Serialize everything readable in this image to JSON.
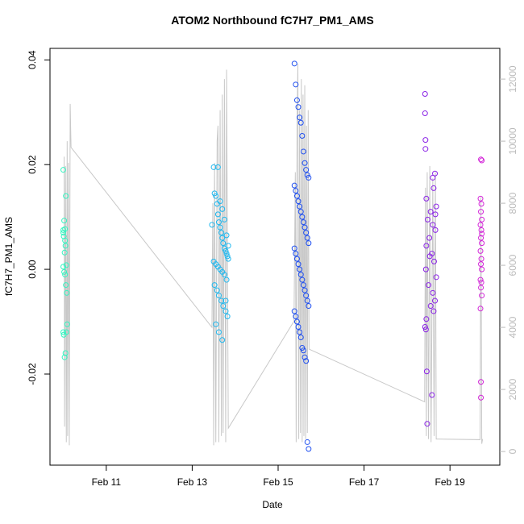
{
  "chart_data": {
    "type": "scatter",
    "title": "ATOM2 Northbound fC7H7_PM1_AMS",
    "xlabel": "Date",
    "ylabel": "fC7H7_PM1_AMS",
    "xlim": [
      9.69,
      20.16
    ],
    "xticks": [
      {
        "value": 11,
        "label": "Feb 11"
      },
      {
        "value": 13,
        "label": "Feb 13"
      },
      {
        "value": 15,
        "label": "Feb 15"
      },
      {
        "value": 17,
        "label": "Feb 17"
      },
      {
        "value": 19,
        "label": "Feb 19"
      }
    ],
    "ylim": [
      -0.0374,
      0.0422
    ],
    "yticks": [
      -0.02,
      {
        "value": 0,
        "label": "0.00"
      },
      0.02,
      0.04
    ],
    "y2lim": [
      -440,
      12990
    ],
    "y2ticks": [
      0,
      2000,
      4000,
      6000,
      8000,
      10000,
      12000
    ],
    "series": [
      {
        "color": "#c8c8c8",
        "axis": "y2",
        "x": [
          10.02,
          10.03,
          10.05,
          10.07,
          10.09,
          10.1,
          10.12,
          10.14,
          10.16,
          10.18,
          13.46,
          13.48,
          13.5,
          13.52,
          13.55,
          13.58,
          13.6,
          13.62,
          13.65,
          13.68,
          13.7,
          13.72,
          13.75,
          13.78,
          13.8,
          13.84,
          15.37,
          15.4,
          15.42,
          15.44,
          15.46,
          15.48,
          15.5,
          15.52,
          15.54,
          15.56,
          15.58,
          15.6,
          15.62,
          15.64,
          15.66,
          15.68,
          15.7,
          15.72,
          18.41,
          18.43,
          18.45,
          18.47,
          18.5,
          18.53,
          18.56,
          18.6,
          18.63,
          18.66,
          18.68,
          18.71,
          19.7,
          19.72,
          19.74,
          19.76
        ],
        "values": [
          9500,
          800,
          9200,
          300,
          10000,
          500,
          9300,
          200,
          11200,
          9800,
          4000,
          8000,
          200,
          9300,
          300,
          10000,
          10500,
          300,
          11000,
          500,
          11500,
          600,
          12000,
          300,
          12300,
          750,
          4200,
          9000,
          300,
          10500,
          12500,
          400,
          11000,
          600,
          12000,
          300,
          11500,
          500,
          11800,
          400,
          10500,
          600,
          11000,
          3300,
          1600,
          8500,
          500,
          9000,
          400,
          9200,
          300,
          8800,
          500,
          9000,
          400,
          400,
          380,
          8200,
          250,
          400
        ]
      },
      {
        "color": "#33f5c0",
        "x": [
          10.0,
          10.02,
          10.04,
          10.0,
          10.01,
          10.03,
          10.0,
          10.02,
          10.04,
          10.0,
          10.01,
          10.05,
          10.03,
          10.06,
          10.0,
          10.04,
          10.05,
          10.07,
          10.06,
          10.08,
          10.09,
          10.07
        ],
        "values": [
          0.019,
          0.0093,
          0.0077,
          0.007,
          0.0063,
          0.0032,
          0.0005,
          -0.0005,
          -0.001,
          -0.012,
          -0.0125,
          -0.016,
          -0.0168,
          0.014,
          0.0075,
          0.0055,
          0.0045,
          0.0008,
          -0.003,
          -0.0045,
          -0.0105,
          -0.012
        ]
      },
      {
        "color": "#1fb8ef",
        "x": [
          13.5,
          13.52,
          13.55,
          13.58,
          13.6,
          13.62,
          13.65,
          13.68,
          13.7,
          13.72,
          13.75,
          13.78,
          13.8,
          13.82,
          13.84,
          13.5,
          13.55,
          13.6,
          13.65,
          13.7,
          13.75,
          13.8,
          13.52,
          13.58,
          13.62,
          13.68,
          13.72,
          13.78,
          13.82,
          13.6,
          13.65,
          13.7,
          13.75,
          13.8,
          13.84,
          13.55,
          13.62,
          13.7,
          13.78,
          13.46
        ],
        "values": [
          0.0195,
          0.0145,
          0.014,
          0.0125,
          0.0105,
          0.009,
          0.008,
          0.007,
          0.006,
          0.005,
          0.004,
          0.0035,
          0.003,
          0.0025,
          0.002,
          0.0015,
          0.001,
          0.0005,
          0,
          -0.0005,
          -0.001,
          -0.002,
          -0.003,
          -0.004,
          -0.005,
          -0.006,
          -0.007,
          -0.008,
          -0.009,
          0.0195,
          0.013,
          0.0115,
          0.0095,
          0.0065,
          0.0045,
          -0.0105,
          -0.012,
          -0.0135,
          -0.006,
          0.0085
        ]
      },
      {
        "color": "#1f4ff0",
        "x": [
          15.38,
          15.41,
          15.44,
          15.47,
          15.5,
          15.53,
          15.56,
          15.59,
          15.62,
          15.65,
          15.68,
          15.71,
          15.38,
          15.41,
          15.44,
          15.47,
          15.5,
          15.53,
          15.56,
          15.59,
          15.62,
          15.65,
          15.68,
          15.71,
          15.38,
          15.41,
          15.44,
          15.47,
          15.5,
          15.53,
          15.56,
          15.59,
          15.62,
          15.65,
          15.68,
          15.71,
          15.38,
          15.41,
          15.44,
          15.47,
          15.5,
          15.53,
          15.56,
          15.59,
          15.62,
          15.65,
          15.68,
          15.71
        ],
        "values": [
          0.0393,
          0.0353,
          0.0323,
          0.031,
          0.029,
          0.028,
          0.0255,
          0.0225,
          0.0203,
          0.019,
          0.018,
          0.0175,
          0.016,
          0.015,
          0.014,
          0.013,
          0.012,
          0.011,
          0.01,
          0.009,
          0.008,
          0.007,
          0.006,
          0.005,
          0.004,
          0.003,
          0.002,
          0.001,
          0,
          -0.001,
          -0.002,
          -0.003,
          -0.004,
          -0.005,
          -0.006,
          -0.007,
          -0.008,
          -0.009,
          -0.01,
          -0.011,
          -0.012,
          -0.013,
          -0.015,
          -0.0155,
          -0.0168,
          -0.0175,
          -0.033,
          -0.0343
        ]
      },
      {
        "color": "#8a22e6",
        "x": [
          18.42,
          18.42,
          18.43,
          18.43,
          18.65,
          18.6,
          18.62,
          18.45,
          18.68,
          18.55,
          18.48,
          18.6,
          18.66,
          18.52,
          18.45,
          18.58,
          18.63,
          18.44,
          18.68,
          18.5,
          18.6,
          18.65,
          18.55,
          18.62,
          18.45,
          18.42,
          18.44,
          18.46,
          18.58,
          18.47,
          18.66,
          18.53
        ],
        "values": [
          0.0335,
          0.0298,
          0.0247,
          0.023,
          0.0183,
          0.0175,
          0.0155,
          0.0135,
          0.012,
          0.011,
          0.0095,
          0.0085,
          0.0075,
          0.006,
          0.0045,
          0.003,
          0.0015,
          0,
          -0.0015,
          -0.003,
          -0.0045,
          -0.006,
          -0.007,
          -0.008,
          -0.0095,
          -0.011,
          -0.0115,
          -0.0195,
          -0.024,
          -0.0295,
          0.0105,
          0.0025
        ]
      },
      {
        "color": "#d325d8",
        "x": [
          19.72,
          19.74,
          19.71,
          19.73,
          19.72,
          19.74,
          19.71,
          19.73,
          19.72,
          19.74,
          19.71,
          19.73,
          19.72,
          19.74,
          19.71,
          19.73,
          19.72,
          19.74,
          19.71,
          19.72,
          19.72,
          19.74
        ],
        "values": [
          0.021,
          0.0208,
          0.0135,
          0.0125,
          0.011,
          0.0095,
          0.0085,
          0.0075,
          0.006,
          0.005,
          0.0035,
          0.002,
          0.001,
          0,
          -0.002,
          -0.0025,
          -0.0035,
          -0.005,
          -0.0075,
          -0.0215,
          -0.0245,
          0.0068
        ]
      }
    ]
  }
}
